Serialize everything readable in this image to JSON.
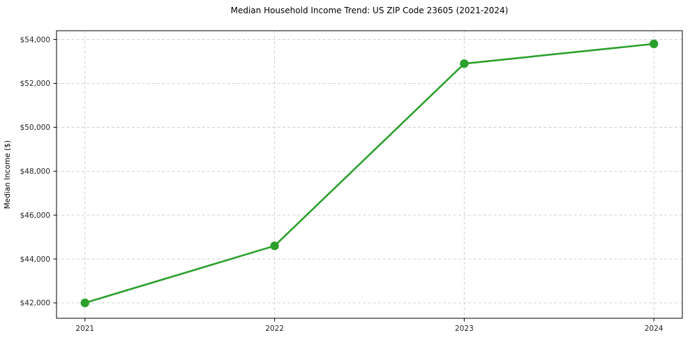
{
  "chart_data": {
    "type": "line",
    "title": "Median Household Income Trend: US ZIP Code 23605 (2021-2024)",
    "xlabel": "",
    "ylabel": "Median Income ($)",
    "categories": [
      "2021",
      "2022",
      "2023",
      "2024"
    ],
    "x": [
      2021,
      2022,
      2023,
      2024
    ],
    "values": [
      42000,
      44600,
      52900,
      53800
    ],
    "y_ticks": [
      42000,
      44000,
      46000,
      48000,
      50000,
      52000,
      54000
    ],
    "y_tick_labels": [
      "$42,000",
      "$44,000",
      "$46,000",
      "$48,000",
      "$50,000",
      "$52,000",
      "$54,000"
    ],
    "x_tick_labels": [
      "2021",
      "2022",
      "2023",
      "2024"
    ],
    "xlim": [
      2020.85,
      2024.15
    ],
    "ylim": [
      41300,
      54400
    ],
    "grid": "dashed",
    "grid_color": "#cccccc",
    "line_color": "#2ca02c",
    "marker": "circle",
    "axis_color": "#000000",
    "tick_label_color": "#262626",
    "background_color": "#ffffff",
    "legend": "none"
  }
}
